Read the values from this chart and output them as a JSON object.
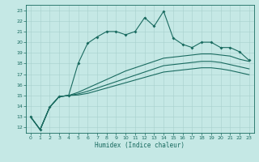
{
  "title": "",
  "xlabel": "Humidex (Indice chaleur)",
  "xlim": [
    -0.5,
    23.5
  ],
  "ylim": [
    11.5,
    23.5
  ],
  "yticks": [
    12,
    13,
    14,
    15,
    16,
    17,
    18,
    19,
    20,
    21,
    22,
    23
  ],
  "xticks": [
    0,
    1,
    2,
    3,
    4,
    5,
    6,
    7,
    8,
    9,
    10,
    11,
    12,
    13,
    14,
    15,
    16,
    17,
    18,
    19,
    20,
    21,
    22,
    23
  ],
  "bg_color": "#c5e8e5",
  "grid_color": "#a8d0cc",
  "line_color": "#1a6b60",
  "line1": {
    "x": [
      0,
      1,
      2,
      3,
      4,
      5,
      6,
      7,
      8,
      9,
      10,
      11,
      12,
      13,
      14,
      15,
      16,
      17,
      18,
      19,
      20,
      21,
      22,
      23
    ],
    "y": [
      13.0,
      11.8,
      13.9,
      14.9,
      15.0,
      18.0,
      19.9,
      20.5,
      21.0,
      21.0,
      20.7,
      21.0,
      22.3,
      21.5,
      22.9,
      20.4,
      19.8,
      19.5,
      20.0,
      20.0,
      19.5,
      19.5,
      19.1,
      18.3
    ]
  },
  "line2": {
    "x": [
      0,
      1,
      2,
      3,
      4,
      5,
      6,
      7,
      8,
      9,
      10,
      11,
      12,
      13,
      14,
      15,
      16,
      17,
      18,
      19,
      20,
      21,
      22,
      23
    ],
    "y": [
      13.0,
      11.8,
      13.9,
      14.9,
      15.0,
      15.3,
      15.7,
      16.1,
      16.5,
      16.9,
      17.3,
      17.6,
      17.9,
      18.2,
      18.5,
      18.6,
      18.7,
      18.8,
      18.9,
      18.9,
      18.8,
      18.7,
      18.4,
      18.2
    ]
  },
  "line3": {
    "x": [
      0,
      1,
      2,
      3,
      4,
      5,
      6,
      7,
      8,
      9,
      10,
      11,
      12,
      13,
      14,
      15,
      16,
      17,
      18,
      19,
      20,
      21,
      22,
      23
    ],
    "y": [
      13.0,
      11.8,
      13.9,
      14.9,
      15.0,
      15.15,
      15.4,
      15.7,
      16.0,
      16.3,
      16.6,
      16.9,
      17.2,
      17.5,
      17.8,
      17.9,
      18.0,
      18.1,
      18.2,
      18.2,
      18.1,
      17.9,
      17.7,
      17.5
    ]
  },
  "line4": {
    "x": [
      0,
      1,
      2,
      3,
      4,
      5,
      6,
      7,
      8,
      9,
      10,
      11,
      12,
      13,
      14,
      15,
      16,
      17,
      18,
      19,
      20,
      21,
      22,
      23
    ],
    "y": [
      13.0,
      11.8,
      13.9,
      14.9,
      15.0,
      15.05,
      15.2,
      15.45,
      15.7,
      15.95,
      16.2,
      16.45,
      16.7,
      16.95,
      17.2,
      17.3,
      17.4,
      17.5,
      17.6,
      17.6,
      17.5,
      17.35,
      17.15,
      16.95
    ]
  }
}
